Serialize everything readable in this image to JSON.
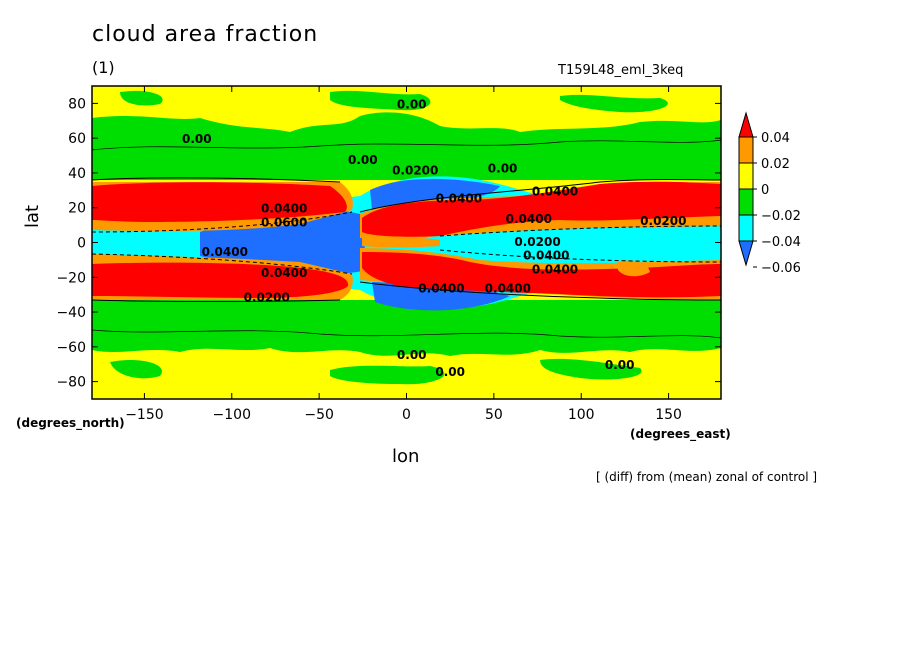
{
  "title": "cloud area fraction",
  "panel_label": "(1)",
  "run_label": "T159L48_eml_3keq",
  "x_unit": "(degrees_east)",
  "y_unit": "(degrees_north)",
  "footnote": "[ (diff) from (mean) zonal of control ]",
  "colors": {
    "red": "#ff0000",
    "orange": "#ff9900",
    "yellow": "#ffff00",
    "green": "#00dd00",
    "cyan": "#00ffff",
    "blue": "#1e6fff"
  },
  "chart_data": {
    "type": "heatmap",
    "title": "cloud area fraction",
    "xlabel": "lon",
    "ylabel": "lat",
    "xlim": [
      -180,
      180
    ],
    "ylim": [
      -90,
      90
    ],
    "x_ticks": [
      -150,
      -100,
      -50,
      0,
      50,
      100,
      150
    ],
    "y_ticks": [
      -80,
      -60,
      -40,
      -20,
      0,
      20,
      40,
      60,
      80
    ],
    "colorbar": {
      "levels": [
        0.04,
        0.02,
        0,
        -0.02,
        -0.04,
        -0.06
      ],
      "level_labels": [
        "0.04",
        "0.02",
        "0",
        "−0.02",
        "−0.04",
        "−0.06"
      ],
      "fill_colors": [
        "#ff0000",
        "#ff9900",
        "#ffff00",
        "#00dd00",
        "#00ffff",
        "#1e6fff"
      ],
      "extend": "both"
    },
    "contour_labels": [
      {
        "text": "0.00",
        "lon": 3,
        "lat": 80
      },
      {
        "text": "0.00",
        "lon": -120,
        "lat": 60
      },
      {
        "text": "0.00",
        "lon": -25,
        "lat": 48
      },
      {
        "text": "0.0200",
        "lon": 5,
        "lat": 42
      },
      {
        "text": "0.00",
        "lon": 55,
        "lat": 43
      },
      {
        "text": "0.0400",
        "lon": 85,
        "lat": 30
      },
      {
        "text": "0.0400",
        "lon": 30,
        "lat": 26
      },
      {
        "text": "0.0400",
        "lon": -70,
        "lat": 20
      },
      {
        "text": "0.0600",
        "lon": -70,
        "lat": 12
      },
      {
        "text": "0.0400",
        "lon": 70,
        "lat": 14
      },
      {
        "text": "0.0200",
        "lon": 147,
        "lat": 13
      },
      {
        "text": "0.0400",
        "lon": -104,
        "lat": -5
      },
      {
        "text": "0.0200",
        "lon": 75,
        "lat": 1
      },
      {
        "text": "0.0400",
        "lon": 80,
        "lat": -7
      },
      {
        "text": "0.0400",
        "lon": 85,
        "lat": -15
      },
      {
        "text": "0.0400",
        "lon": -70,
        "lat": -17
      },
      {
        "text": "0.0200",
        "lon": -80,
        "lat": -31
      },
      {
        "text": "0.0400",
        "lon": 20,
        "lat": -26
      },
      {
        "text": "0.0400",
        "lon": 58,
        "lat": -26
      },
      {
        "text": "0.00",
        "lon": 3,
        "lat": -64
      },
      {
        "text": "0.00",
        "lon": 25,
        "lat": -74
      },
      {
        "text": "0.00",
        "lon": 122,
        "lat": -70
      }
    ]
  }
}
